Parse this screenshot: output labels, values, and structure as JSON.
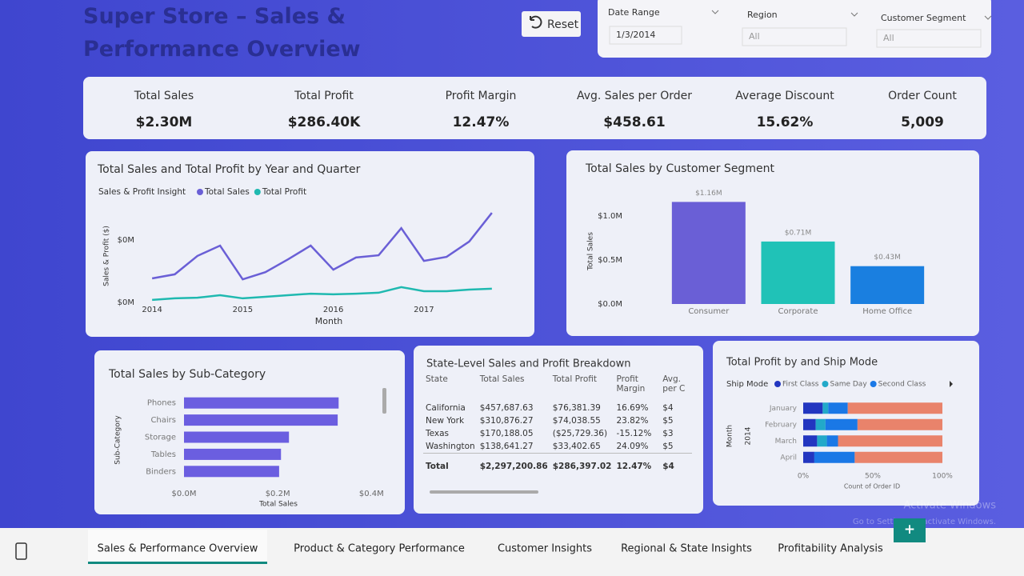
{
  "header": {
    "title": "Super Store – Sales & Performance Overview",
    "reset": "Reset"
  },
  "filters": [
    {
      "label": "Date Range",
      "value": "1/3/2014"
    },
    {
      "label": "Region",
      "value": "All"
    },
    {
      "label": "Customer Segment",
      "value": "All"
    }
  ],
  "kpis": [
    {
      "label": "Total Sales",
      "value": "$2.30M"
    },
    {
      "label": "Total Profit",
      "value": "$286.40K"
    },
    {
      "label": "Profit Margin",
      "value": "12.47%"
    },
    {
      "label": "Avg. Sales per Order",
      "value": "$458.61"
    },
    {
      "label": "Average Discount",
      "value": "15.62%"
    },
    {
      "label": "Order Count",
      "value": "5,009"
    }
  ],
  "table": {
    "title": "State-Level Sales and Profit Breakdown",
    "columns": [
      "State",
      "Total Sales",
      "Total Profit",
      "Profit Margin",
      "Avg. per C"
    ],
    "rows": [
      [
        "California",
        "$457,687.63",
        "$76,381.39",
        "16.69%",
        "$4"
      ],
      [
        "New York",
        "$310,876.27",
        "$74,038.55",
        "23.82%",
        "$5"
      ],
      [
        "Texas",
        "$170,188.05",
        "($25,729.36)",
        "-15.12%",
        "$3"
      ],
      [
        "Washington",
        "$138,641.27",
        "$33,402.65",
        "24.09%",
        "$5"
      ]
    ],
    "total": [
      "Total",
      "$2,297,200.86",
      "$286,397.02",
      "12.47%",
      "$4"
    ]
  },
  "chart_data": [
    {
      "type": "line",
      "title": "Total Sales and Total Profit by Year and Quarter",
      "subtitle": "Sales & Profit Insight",
      "x_label": "Month",
      "y_label": "Sales & Profit ($)",
      "categories": [
        "2014",
        null,
        null,
        null,
        "2015",
        null,
        null,
        null,
        "2016",
        null,
        null,
        null,
        "2017",
        null,
        null,
        null
      ],
      "ylim": [
        0,
        0.3
      ],
      "yticks": [
        {
          "value": 0,
          "label": "$0M"
        },
        {
          "value": 0.2,
          "label": "$0M"
        }
      ],
      "grid": false,
      "series": [
        {
          "name": "Total Sales",
          "color": "#6a5fd6",
          "values": [
            0.077,
            0.09,
            0.149,
            0.182,
            0.074,
            0.097,
            0.138,
            0.182,
            0.105,
            0.144,
            0.151,
            0.238,
            0.133,
            0.146,
            0.195,
            0.287
          ]
        },
        {
          "name": "Total Profit",
          "color": "#1fb9b0",
          "values": [
            0.008,
            0.013,
            0.015,
            0.023,
            0.013,
            0.018,
            0.023,
            0.028,
            0.026,
            0.028,
            0.031,
            0.049,
            0.036,
            0.036,
            0.041,
            0.044
          ]
        }
      ]
    },
    {
      "type": "bar",
      "title": "Total Sales by Customer Segment",
      "y_label": "Total Sales",
      "categories": [
        "Consumer",
        "Corporate",
        "Home Office"
      ],
      "values": [
        1.16,
        0.71,
        0.43
      ],
      "value_labels": [
        "$1.16M",
        "$0.71M",
        "$0.43M"
      ],
      "colors": [
        "#6a5fd6",
        "#20c2b7",
        "#1a7fe0"
      ],
      "ylim": [
        0,
        1.2
      ],
      "yticks": [
        {
          "value": 0,
          "label": "$0.0M"
        },
        {
          "value": 0.5,
          "label": "$0.5M"
        },
        {
          "value": 1.0,
          "label": "$1.0M"
        }
      ],
      "grid": false
    },
    {
      "type": "hbar",
      "title": "Total Sales by Sub-Category",
      "x_label": "Total Sales",
      "y_label": "Sub-Category",
      "categories": [
        "Phones",
        "Chairs",
        "Storage",
        "Tables",
        "Binders"
      ],
      "values": [
        0.33,
        0.328,
        0.224,
        0.207,
        0.203
      ],
      "color": "#6b5ee0",
      "xlim": [
        0,
        0.42
      ],
      "xticks": [
        {
          "value": 0,
          "label": "$0.0M"
        },
        {
          "value": 0.2,
          "label": "$0.2M"
        },
        {
          "value": 0.4,
          "label": "$0.4M"
        }
      ]
    },
    {
      "type": "stackedbar",
      "title": "Total Profit by and Ship Mode",
      "legend_title": "Ship Mode",
      "y_label": "Month",
      "y_group": "2014",
      "x_label": "Count of Order ID",
      "categories": [
        "January",
        "February",
        "March",
        "April"
      ],
      "xlim": [
        0,
        100
      ],
      "xticks": [
        {
          "value": 0,
          "label": "0%"
        },
        {
          "value": 50,
          "label": "50%"
        },
        {
          "value": 100,
          "label": "100%"
        }
      ],
      "series": [
        {
          "name": "First Class",
          "color": "#2236c0",
          "values": [
            14,
            9,
            10,
            8
          ]
        },
        {
          "name": "Same Day",
          "color": "#22a9c9",
          "values": [
            4,
            7,
            7,
            0
          ]
        },
        {
          "name": "Second Class",
          "color": "#1a78e6",
          "values": [
            14,
            23,
            8,
            29
          ]
        },
        {
          "name": null,
          "color": "#e9836b",
          "values": [
            68,
            61,
            75,
            63
          ]
        }
      ]
    }
  ],
  "tabs": [
    "Sales & Performance Overview",
    "Product & Category Performance",
    "Customer Insights",
    "Regional & State Insights",
    "Profitability Analysis",
    "+"
  ],
  "active_tab": 0,
  "watermark": [
    "Activate Windows",
    "Go to Settings to activate Windows."
  ]
}
